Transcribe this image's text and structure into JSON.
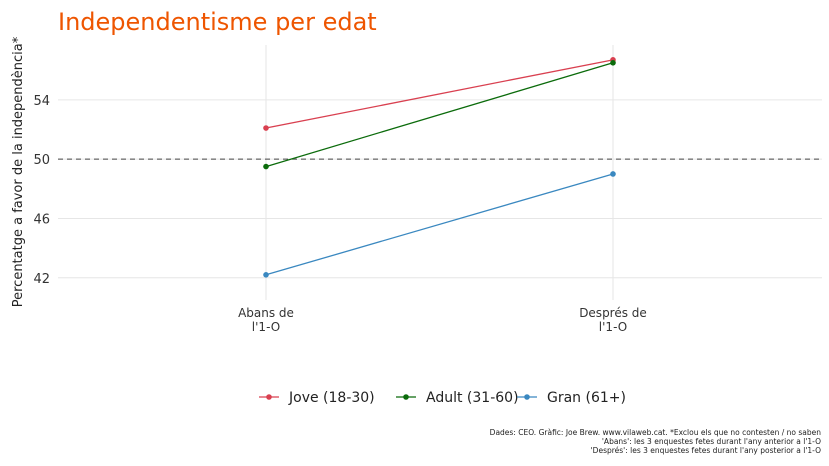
{
  "chart_data": {
    "type": "line",
    "title": "Independentisme per edat",
    "title_color": "#ee5500",
    "xlabel": "",
    "ylabel": "Percentatge a favor de la independència*",
    "categories": [
      [
        "Abans de",
        "l'1-O"
      ],
      [
        "Després de",
        "l'1-O"
      ]
    ],
    "ylim": [
      40.5,
      57.7
    ],
    "yticks": [
      42,
      46,
      50,
      54
    ],
    "reference_line": 50,
    "grid": true,
    "legend_position": "bottom",
    "series": [
      {
        "name": "Jove (18-30)",
        "color": "#d94050",
        "values": [
          52.1,
          56.7
        ]
      },
      {
        "name": "Adult (31-60)",
        "color": "#0b6b0b",
        "values": [
          49.5,
          56.5
        ]
      },
      {
        "name": "Gran (61+)",
        "color": "#3a88c0",
        "values": [
          42.2,
          49.0
        ]
      }
    ],
    "caption": [
      "Dades: CEO. Gràfic: Joe Brew. www.vilaweb.cat. *Exclou els que no contesten / no saben",
      "'Abans': les 3 enquestes fetes durant l'any anterior a l'1-O",
      "'Després': les 3 enquestes fetes durant l'any posterior a l'1-O"
    ]
  }
}
